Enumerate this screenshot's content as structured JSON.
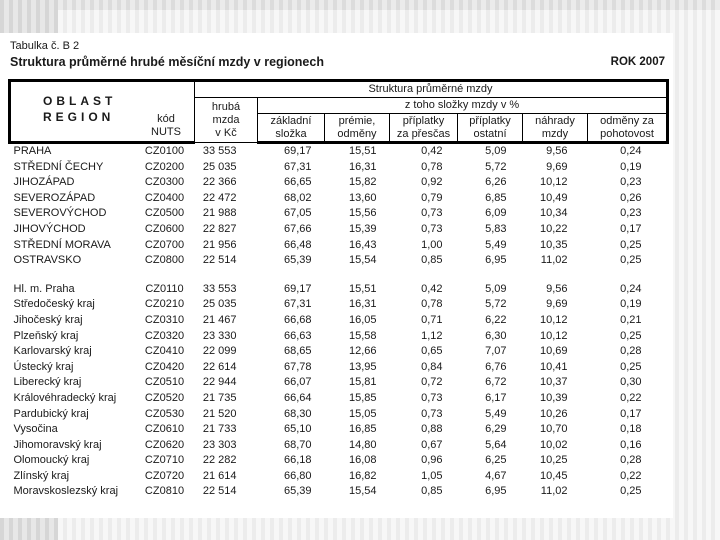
{
  "page": {
    "caption": "Tabulka č. B 2",
    "title": "Struktura průměrné hrubé měsíční mzdy v regionech",
    "year_label": "ROK 2007"
  },
  "table": {
    "header": {
      "oblast": [
        "OBLAST",
        "REGION"
      ],
      "kod_nuts": [
        "kód",
        "NUTS"
      ],
      "struktura": "Struktura průměrné mzdy",
      "hruba_mzda": [
        "hrubá",
        "mzda",
        "v Kč"
      ],
      "z_toho": "z toho složky mzdy v %",
      "columns": [
        {
          "name": "base-component",
          "lines": [
            "základní",
            "složka"
          ]
        },
        {
          "name": "bonuses",
          "lines": [
            "prémie,",
            "odměny"
          ]
        },
        {
          "name": "overtime-supplements",
          "lines": [
            "příplatky",
            "za přesčas"
          ]
        },
        {
          "name": "other-supplements",
          "lines": [
            "příplatky",
            "ostatní"
          ]
        },
        {
          "name": "wage-compensations",
          "lines": [
            "náhrady",
            "mzdy"
          ]
        },
        {
          "name": "standby-pay",
          "lines": [
            "odměny za",
            "pohotovost"
          ]
        }
      ]
    },
    "cell_names": [
      "region-name",
      "nuts-code",
      "gross-wage",
      "base-component",
      "bonuses",
      "overtime-supplements",
      "other-supplements",
      "wage-compensations",
      "standby-pay"
    ],
    "groups": [
      {
        "name": "regions-nuts2",
        "rows": [
          [
            "PRAHA",
            "CZ0100",
            "33 553",
            "69,17",
            "15,51",
            "0,42",
            "5,09",
            "9,56",
            "0,24"
          ],
          [
            "STŘEDNÍ ČECHY",
            "CZ0200",
            "25 035",
            "67,31",
            "16,31",
            "0,78",
            "5,72",
            "9,69",
            "0,19"
          ],
          [
            "JIHOZÁPAD",
            "CZ0300",
            "22 366",
            "66,65",
            "15,82",
            "0,92",
            "6,26",
            "10,12",
            "0,23"
          ],
          [
            "SEVEROZÁPAD",
            "CZ0400",
            "22 472",
            "68,02",
            "13,60",
            "0,79",
            "6,85",
            "10,49",
            "0,26"
          ],
          [
            "SEVEROVÝCHOD",
            "CZ0500",
            "21 988",
            "67,05",
            "15,56",
            "0,73",
            "6,09",
            "10,34",
            "0,23"
          ],
          [
            "JIHOVÝCHOD",
            "CZ0600",
            "22 827",
            "67,66",
            "15,39",
            "0,73",
            "5,83",
            "10,22",
            "0,17"
          ],
          [
            "STŘEDNÍ MORAVA",
            "CZ0700",
            "21 956",
            "66,48",
            "16,43",
            "1,00",
            "5,49",
            "10,35",
            "0,25"
          ],
          [
            "OSTRAVSKO",
            "CZ0800",
            "22 514",
            "65,39",
            "15,54",
            "0,85",
            "6,95",
            "11,02",
            "0,25"
          ]
        ]
      },
      {
        "name": "kraje-nuts3",
        "rows": [
          [
            "Hl. m. Praha",
            "CZ0110",
            "33 553",
            "69,17",
            "15,51",
            "0,42",
            "5,09",
            "9,56",
            "0,24"
          ],
          [
            "Středočeský kraj",
            "CZ0210",
            "25 035",
            "67,31",
            "16,31",
            "0,78",
            "5,72",
            "9,69",
            "0,19"
          ],
          [
            "Jihočeský kraj",
            "CZ0310",
            "21 467",
            "66,68",
            "16,05",
            "0,71",
            "6,22",
            "10,12",
            "0,21"
          ],
          [
            "Plzeňský kraj",
            "CZ0320",
            "23 330",
            "66,63",
            "15,58",
            "1,12",
            "6,30",
            "10,12",
            "0,25"
          ],
          [
            "Karlovarský kraj",
            "CZ0410",
            "22 099",
            "68,65",
            "12,66",
            "0,65",
            "7,07",
            "10,69",
            "0,28"
          ],
          [
            "Ústecký kraj",
            "CZ0420",
            "22 614",
            "67,78",
            "13,95",
            "0,84",
            "6,76",
            "10,41",
            "0,25"
          ],
          [
            "Liberecký kraj",
            "CZ0510",
            "22 944",
            "66,07",
            "15,81",
            "0,72",
            "6,72",
            "10,37",
            "0,30"
          ],
          [
            "Královéhradecký kraj",
            "CZ0520",
            "21 735",
            "66,64",
            "15,85",
            "0,73",
            "6,17",
            "10,39",
            "0,22"
          ],
          [
            "Pardubický kraj",
            "CZ0530",
            "21 520",
            "68,30",
            "15,05",
            "0,73",
            "5,49",
            "10,26",
            "0,17"
          ],
          [
            "Vysočina",
            "CZ0610",
            "21 733",
            "65,10",
            "16,85",
            "0,88",
            "6,29",
            "10,70",
            "0,18"
          ],
          [
            "Jihomoravský kraj",
            "CZ0620",
            "23 303",
            "68,70",
            "14,80",
            "0,67",
            "5,64",
            "10,02",
            "0,16"
          ],
          [
            "Olomoucký kraj",
            "CZ0710",
            "22 282",
            "66,18",
            "16,08",
            "0,96",
            "6,25",
            "10,25",
            "0,28"
          ],
          [
            "Zlínský kraj",
            "CZ0720",
            "21 614",
            "66,80",
            "16,82",
            "1,05",
            "4,67",
            "10,45",
            "0,22"
          ],
          [
            "Moravskoslezský kraj",
            "CZ0810",
            "22 514",
            "65,39",
            "15,54",
            "0,85",
            "6,95",
            "11,02",
            "0,25"
          ]
        ]
      }
    ]
  }
}
